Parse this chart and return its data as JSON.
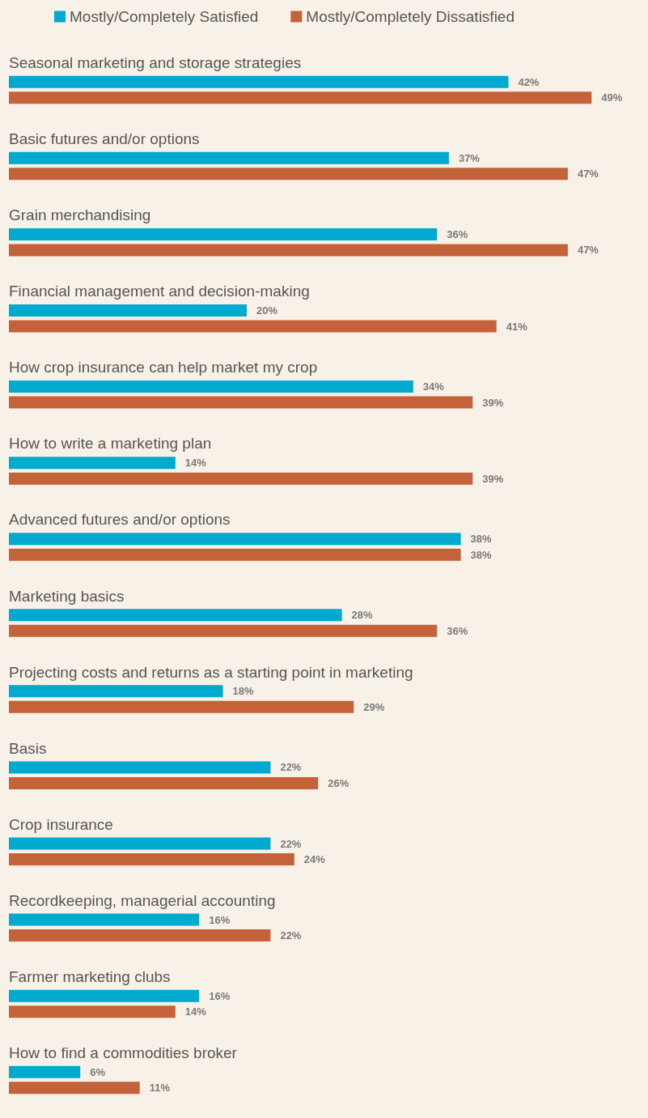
{
  "chart_data": {
    "type": "bar",
    "orientation": "horizontal",
    "legend": "top left",
    "tick_labels": "y",
    "categories": [
      "Seasonal marketing and storage strategies",
      "Basic futures and/or options",
      "Grain merchandising",
      "Financial management and decision-making",
      "How crop insurance can help market my crop",
      "How to write a marketing plan",
      "Advanced futures and/or options",
      "Marketing basics",
      "Projecting costs and returns as a starting point in marketing",
      "Basis",
      "Crop insurance",
      "Recordkeeping, managerial accounting",
      "Farmer marketing clubs",
      "How to find a commodities broker"
    ],
    "series": [
      {
        "name": "Mostly/Completely Satisfied",
        "color": "#00a9ce",
        "values": [
          42,
          37,
          36,
          20,
          34,
          14,
          38,
          28,
          18,
          22,
          22,
          16,
          16,
          6
        ],
        "value_labels": [
          "42%",
          "37%",
          "36%",
          "20%",
          "34%",
          "14%",
          "38%",
          "28%",
          "18%",
          "22%",
          "22%",
          "16%",
          "16%",
          "6%"
        ]
      },
      {
        "name": "Mostly/Completely Dissatisfied",
        "color": "#c4623a",
        "values": [
          49,
          47,
          47,
          41,
          39,
          39,
          38,
          36,
          29,
          26,
          24,
          22,
          14,
          11
        ],
        "value_labels": [
          "49%",
          "47%",
          "47%",
          "41%",
          "39%",
          "39%",
          "38%",
          "36%",
          "29%",
          "26%",
          "24%",
          "22%",
          "14%",
          "11%"
        ]
      }
    ]
  }
}
